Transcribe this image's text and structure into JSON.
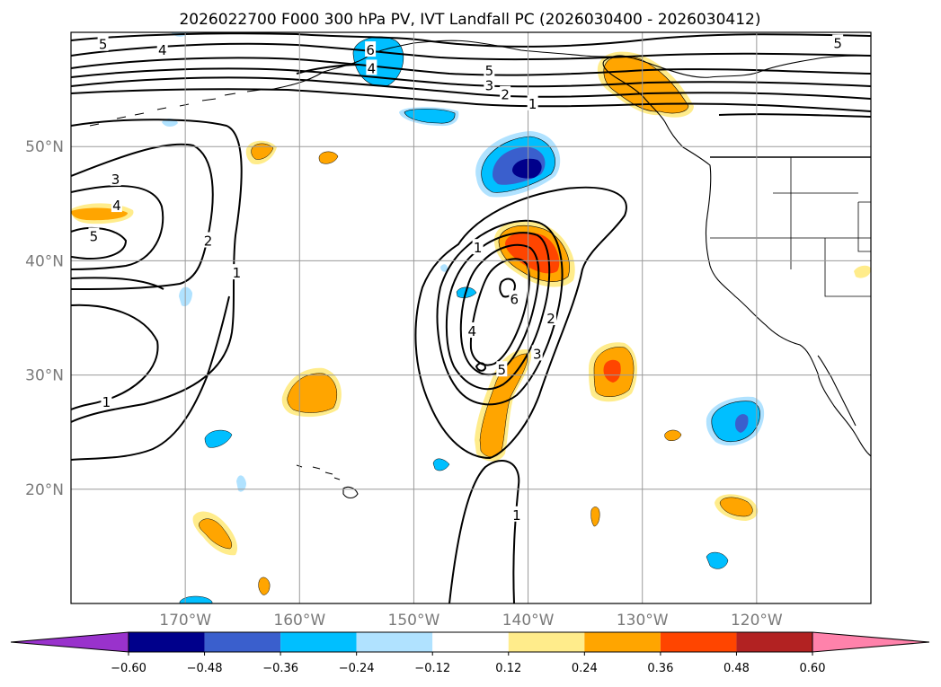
{
  "chart_data": {
    "type": "map-contour",
    "title": "2026022700 F000 300 hPa PV, IVT Landfall PC (2026030400 - 2026030412)",
    "extent": {
      "lon_min": -180,
      "lon_max": -110,
      "lat_min": 10,
      "lat_max": 60
    },
    "lat_ticks": [
      {
        "lat": 50,
        "label": "50°N"
      },
      {
        "lat": 40,
        "label": "40°N"
      },
      {
        "lat": 30,
        "label": "30°N"
      },
      {
        "lat": 20,
        "label": "20°N"
      }
    ],
    "lon_ticks": [
      {
        "lon": -170,
        "label": "170°W"
      },
      {
        "lon": -160,
        "label": "160°W"
      },
      {
        "lon": -150,
        "label": "150°W"
      },
      {
        "lon": -140,
        "label": "140°W"
      },
      {
        "lon": -130,
        "label": "130°W"
      },
      {
        "lon": -120,
        "label": "120°W"
      }
    ],
    "colorbar": {
      "ticks": [
        "−0.60",
        "−0.48",
        "−0.36",
        "−0.24",
        "−0.12",
        "0.12",
        "0.24",
        "0.36",
        "0.48",
        "0.60"
      ],
      "levels": [
        -0.6,
        -0.48,
        -0.36,
        -0.24,
        -0.12,
        0.12,
        0.24,
        0.36,
        0.48,
        0.6
      ],
      "colors": [
        "#9932cc",
        "#00008b",
        "#3a5fcd",
        "#00bfff",
        "#b0e2ff",
        "#ffffff",
        "#ffec8b",
        "#ffa500",
        "#ff4500",
        "#b22222",
        "#ff82ab"
      ],
      "extend": "both"
    },
    "pv_contour_labels": [
      {
        "text": "5",
        "lon": -177.2,
        "lat": 59.0
      },
      {
        "text": "4",
        "lon": -172.0,
        "lat": 58.5
      },
      {
        "text": "6",
        "lon": -153.8,
        "lat": 58.5
      },
      {
        "text": "4",
        "lon": -153.7,
        "lat": 56.9
      },
      {
        "text": "5",
        "lon": -143.4,
        "lat": 56.7
      },
      {
        "text": "3",
        "lon": -143.4,
        "lat": 55.4
      },
      {
        "text": "2",
        "lon": -142.0,
        "lat": 54.6
      },
      {
        "text": "1",
        "lon": -139.6,
        "lat": 53.8
      },
      {
        "text": "5",
        "lon": -112.9,
        "lat": 59.1
      },
      {
        "text": "3",
        "lon": -176.1,
        "lat": 47.2
      },
      {
        "text": "4",
        "lon": -176.0,
        "lat": 44.9
      },
      {
        "text": "5",
        "lon": -178.0,
        "lat": 42.2
      },
      {
        "text": "2",
        "lon": -168.0,
        "lat": 41.8
      },
      {
        "text": "1",
        "lon": -165.5,
        "lat": 39.0
      },
      {
        "text": "1",
        "lon": -176.9,
        "lat": 27.7
      },
      {
        "text": "1",
        "lon": -144.4,
        "lat": 41.2
      },
      {
        "text": "6",
        "lon": -141.2,
        "lat": 36.7
      },
      {
        "text": "4",
        "lon": -144.9,
        "lat": 33.9
      },
      {
        "text": "5",
        "lon": -142.3,
        "lat": 30.5
      },
      {
        "text": "3",
        "lon": -139.2,
        "lat": 31.9
      },
      {
        "text": "2",
        "lon": -138.0,
        "lat": 35.0
      },
      {
        "text": "1",
        "lon": -141.0,
        "lat": 17.8
      }
    ]
  }
}
